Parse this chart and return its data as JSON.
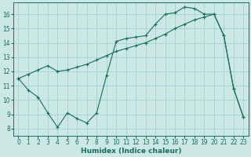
{
  "line1_x": [
    0,
    1,
    2,
    3,
    4,
    5,
    6,
    7,
    8,
    9,
    10,
    11,
    12,
    13,
    14,
    15,
    16,
    17,
    18,
    19,
    20,
    21,
    22,
    23
  ],
  "line1_y": [
    11.5,
    10.7,
    10.2,
    9.1,
    8.1,
    9.1,
    8.7,
    8.4,
    9.1,
    11.7,
    14.1,
    14.3,
    14.4,
    14.5,
    15.3,
    16.0,
    16.1,
    16.5,
    16.4,
    16.0,
    16.0,
    14.5,
    10.8,
    8.8
  ],
  "line2_x": [
    0,
    1,
    2,
    3,
    4,
    5,
    6,
    7,
    8,
    9,
    10,
    11,
    12,
    13,
    14,
    15,
    16,
    17,
    18,
    19,
    20,
    21,
    22,
    23
  ],
  "line2_y": [
    11.5,
    11.8,
    12.1,
    12.4,
    12.0,
    12.1,
    12.3,
    12.5,
    12.8,
    13.1,
    13.4,
    13.6,
    13.8,
    14.0,
    14.3,
    14.6,
    15.0,
    15.3,
    15.6,
    15.8,
    16.0,
    14.5,
    10.8,
    8.8
  ],
  "line_color": "#1a6b5a",
  "bg_color": "#cce8e4",
  "grid_color": "#9ecec9",
  "xlabel": "Humidex (Indice chaleur)",
  "ylim": [
    7.5,
    16.8
  ],
  "xlim": [
    -0.5,
    23.5
  ],
  "yticks": [
    8,
    9,
    10,
    11,
    12,
    13,
    14,
    15,
    16
  ],
  "xticks": [
    0,
    1,
    2,
    3,
    4,
    5,
    6,
    7,
    8,
    9,
    10,
    11,
    12,
    13,
    14,
    15,
    16,
    17,
    18,
    19,
    20,
    21,
    22,
    23
  ],
  "xlabel_fontsize": 6.5,
  "tick_fontsize": 5.5
}
